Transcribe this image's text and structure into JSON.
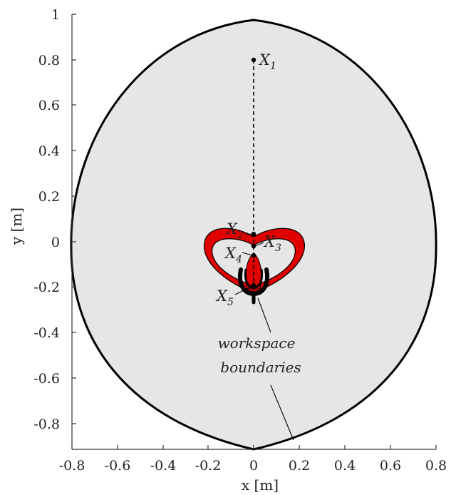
{
  "figure": {
    "xlabel": "x [m]",
    "ylabel": "y [m]",
    "x_ticks": [
      "-0.8",
      "-0.6",
      "-0.4",
      "-0.2",
      "0",
      "0.2",
      "0.4",
      "0.6",
      "0.8"
    ],
    "y_ticks": [
      "1",
      "0.8",
      "0.6",
      "0.4",
      "0.2",
      "0",
      "-0.2",
      "-0.4",
      "-0.6",
      "-0.8"
    ],
    "xlim": [
      -0.8,
      0.8
    ],
    "ylim": [
      -0.92,
      1.0
    ],
    "points": [
      {
        "letter": "X",
        "sub": "1",
        "x": 0,
        "y": 0.8
      },
      {
        "letter": "X",
        "sub": "2",
        "x": 0,
        "y": 0.03
      },
      {
        "letter": "X",
        "sub": "3",
        "x": 0,
        "y": -0.025
      },
      {
        "letter": "X",
        "sub": "4",
        "x": 0,
        "y": -0.06
      },
      {
        "letter": "X",
        "sub": "5",
        "x": 0,
        "y": -0.2
      }
    ],
    "annotation_line1": "workspace",
    "annotation_line2": "boundaries",
    "colors": {
      "outer_fill": "#e6e6e6",
      "outline": "#000000",
      "inner_region": "#e00000",
      "axes": "#333333"
    }
  }
}
